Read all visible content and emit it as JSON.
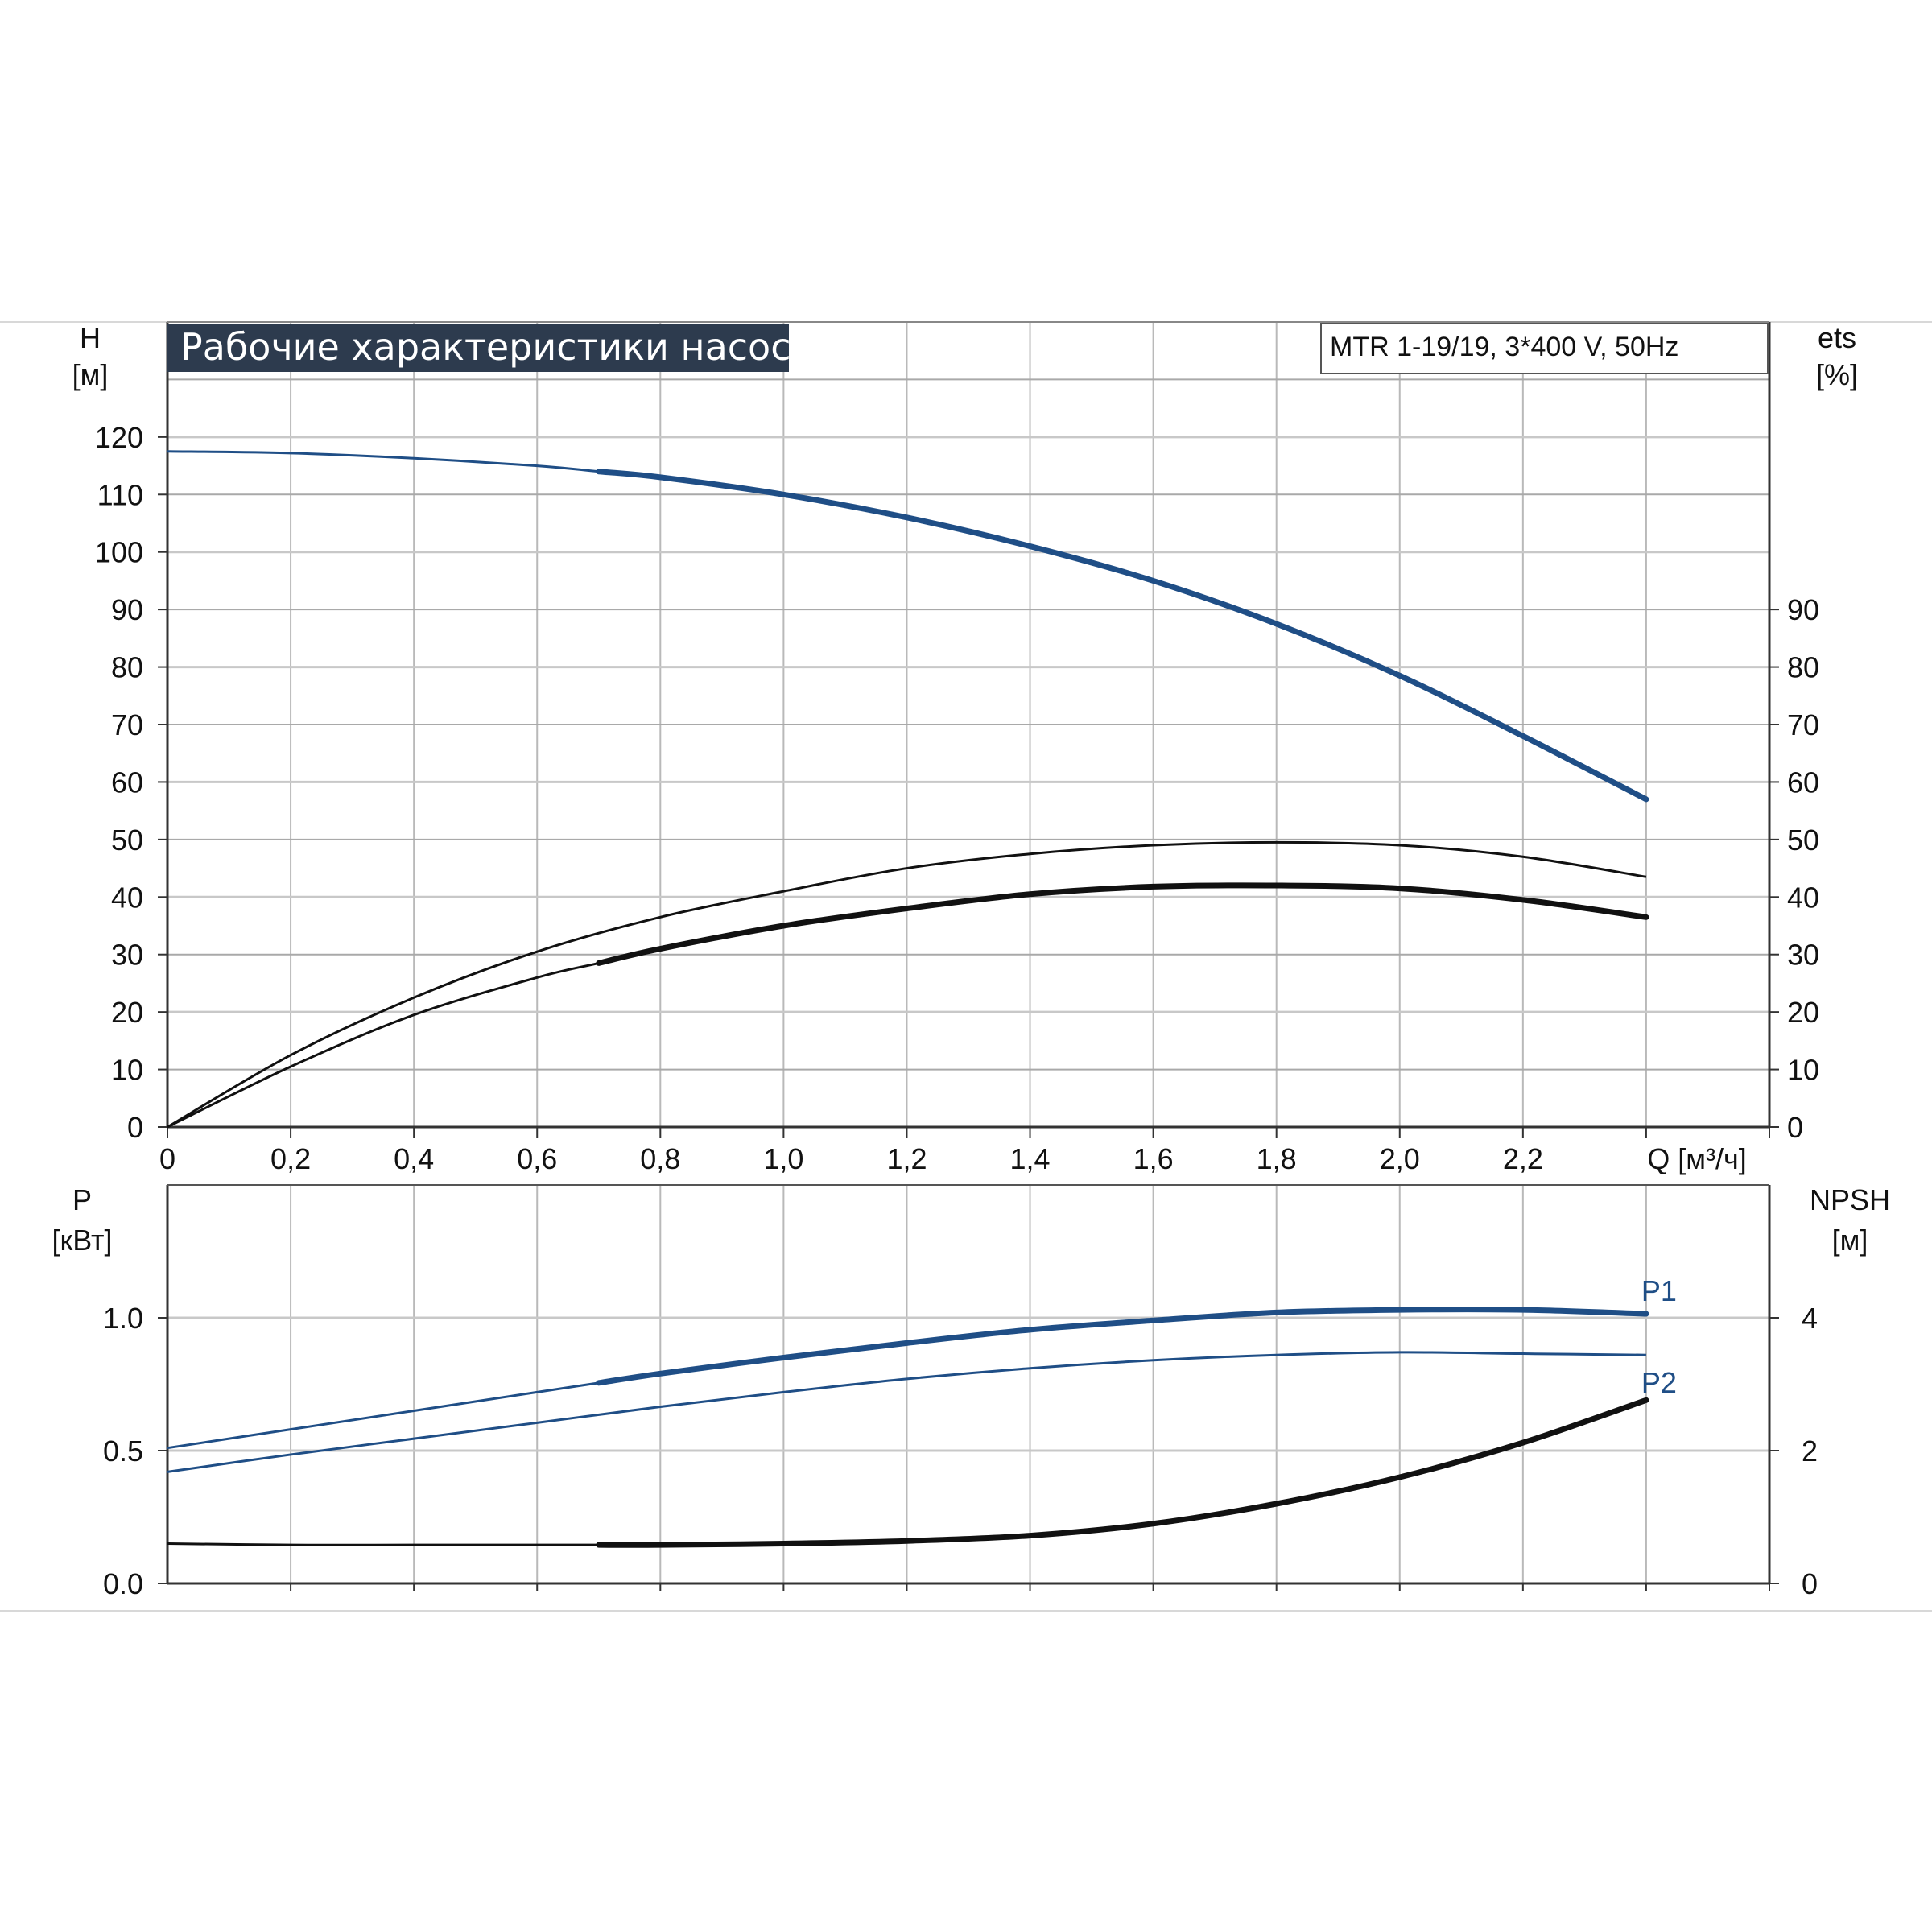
{
  "title": "Рабочие характеристики насоса",
  "model": "MTR 1-19/19, 3*400 V, 50Hz",
  "colors": {
    "blue": "#1f4e86",
    "black": "#111111",
    "grid": "#b9b9b9",
    "title_bg": "#2d3b4e"
  },
  "chart_data": [
    {
      "type": "line",
      "panel": "top",
      "title": "Рабочие характеристики насоса",
      "xlabel": "Q [м³/ч]",
      "ylabel_left": [
        "H",
        "[м]"
      ],
      "ylabel_right": [
        "ets",
        "[%]"
      ],
      "xlim": [
        0,
        2.6
      ],
      "ylim": [
        0,
        140
      ],
      "x_ticks": [
        "0",
        "0,2",
        "0,4",
        "0,6",
        "0,8",
        "1,0",
        "1,2",
        "1,4",
        "1,6",
        "1,8",
        "2,0",
        "2,2"
      ],
      "x_tick_values": [
        0,
        0.2,
        0.4,
        0.6,
        0.8,
        1.0,
        1.2,
        1.4,
        1.6,
        1.8,
        2.0,
        2.2
      ],
      "y_left_ticks": [
        0,
        10,
        20,
        30,
        40,
        50,
        60,
        70,
        80,
        90,
        100,
        110,
        120
      ],
      "y_right_ticks": [
        0,
        10,
        20,
        30,
        40,
        50,
        60,
        70,
        80,
        90
      ],
      "grid": true,
      "series": [
        {
          "color": "#1f4e86",
          "bold_from": 0.7,
          "x": [
            0,
            0.2,
            0.4,
            0.6,
            0.7,
            0.8,
            1.0,
            1.2,
            1.4,
            1.6,
            1.8,
            2.0,
            2.2,
            2.4
          ],
          "y": [
            117.5,
            117.2,
            116.3,
            115.0,
            114.0,
            113.0,
            110.0,
            106.0,
            101.0,
            95.0,
            87.5,
            78.5,
            68.0,
            57.0
          ]
        },
        {
          "color": "#111111",
          "bold_from": 99,
          "x": [
            0,
            0.2,
            0.4,
            0.6,
            0.8,
            1.0,
            1.2,
            1.4,
            1.6,
            1.8,
            2.0,
            2.2,
            2.4
          ],
          "y": [
            0,
            12.5,
            22.5,
            30.5,
            36.5,
            41.0,
            45.0,
            47.5,
            49.0,
            49.5,
            49.0,
            47.0,
            43.5
          ]
        },
        {
          "color": "#111111",
          "bold_from": 0.7,
          "x": [
            0,
            0.2,
            0.4,
            0.6,
            0.7,
            0.8,
            1.0,
            1.2,
            1.4,
            1.6,
            1.8,
            2.0,
            2.2,
            2.4
          ],
          "y": [
            0,
            10.5,
            19.5,
            26.0,
            28.5,
            31.0,
            35.0,
            38.0,
            40.5,
            41.8,
            42.0,
            41.5,
            39.5,
            36.5
          ]
        }
      ]
    },
    {
      "type": "line",
      "panel": "bottom",
      "xlim": [
        0,
        2.6
      ],
      "ylim": [
        0,
        1.5
      ],
      "ylabel_left": [
        "P",
        "[кВт]"
      ],
      "ylabel_right": [
        "NPSH",
        "[м]"
      ],
      "y_left_ticks": [
        "0.0",
        "0.5",
        "1.0"
      ],
      "y_left_tick_values": [
        0,
        0.5,
        1.0
      ],
      "y_right_ticks": [
        "0",
        "2",
        "4"
      ],
      "y_right_tick_values": [
        0,
        2,
        4
      ],
      "grid": true,
      "series": [
        {
          "name": "P1",
          "color": "#1f4e86",
          "bold_from": 0.7,
          "x": [
            0,
            0.2,
            0.4,
            0.6,
            0.7,
            0.8,
            1.0,
            1.2,
            1.4,
            1.6,
            1.8,
            2.0,
            2.2,
            2.4
          ],
          "y": [
            0.51,
            0.58,
            0.65,
            0.72,
            0.755,
            0.79,
            0.85,
            0.905,
            0.955,
            0.99,
            1.02,
            1.03,
            1.03,
            1.015
          ]
        },
        {
          "name": "P2",
          "color": "#1f4e86",
          "bold_from": 99,
          "x": [
            0,
            0.2,
            0.4,
            0.6,
            0.8,
            1.0,
            1.2,
            1.4,
            1.6,
            1.8,
            2.0,
            2.2,
            2.4
          ],
          "y": [
            0.42,
            0.485,
            0.545,
            0.605,
            0.665,
            0.72,
            0.77,
            0.81,
            0.84,
            0.86,
            0.87,
            0.865,
            0.86
          ]
        },
        {
          "color": "#111111",
          "bold_from": 0.7,
          "x": [
            0,
            0.2,
            0.4,
            0.6,
            0.7,
            0.8,
            1.0,
            1.2,
            1.4,
            1.6,
            1.8,
            2.0,
            2.2,
            2.4
          ],
          "y": [
            0.15,
            0.145,
            0.145,
            0.145,
            0.145,
            0.145,
            0.15,
            0.16,
            0.18,
            0.225,
            0.3,
            0.4,
            0.53,
            0.69
          ]
        }
      ]
    }
  ]
}
